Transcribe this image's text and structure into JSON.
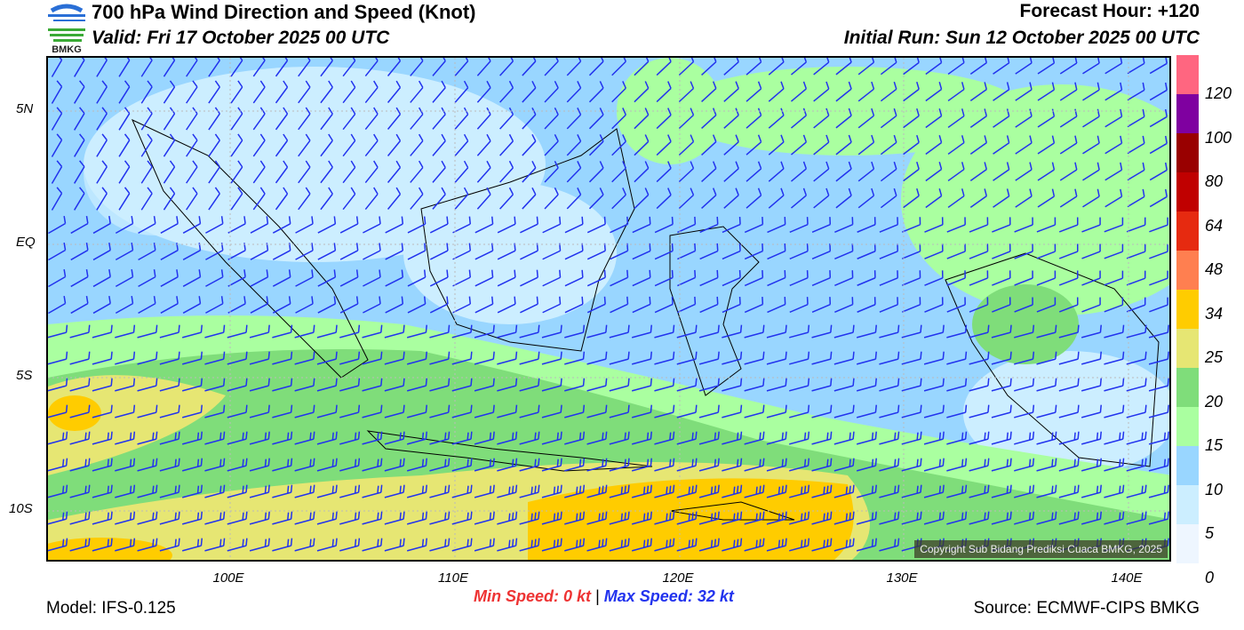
{
  "header": {
    "title": "700 hPa Wind Direction and Speed (Knot)",
    "valid": "Valid: Fri 17 October 2025 00 UTC",
    "forecast_hour": "Forecast Hour: +120",
    "initial_run": "Initial Run: Sun 12 October 2025 00 UTC"
  },
  "logo": {
    "text": "BMKG"
  },
  "map": {
    "lat_labels": [
      "5N",
      "EQ",
      "5S",
      "10S"
    ],
    "lon_labels": [
      "100E",
      "110E",
      "120E",
      "130E",
      "140E"
    ],
    "copyright": "Copyright Sub Bidang Prediksi Cuaca BMKG, 2025",
    "extent": {
      "lon": [
        91.9,
        142
      ],
      "lat": [
        -12,
        7
      ]
    }
  },
  "colorbar": {
    "levels": [
      "120",
      "100",
      "80",
      "64",
      "48",
      "34",
      "25",
      "20",
      "15",
      "10",
      "5",
      "0"
    ],
    "colors": [
      "#ff6680",
      "#7f00a0",
      "#990000",
      "#c00000",
      "#e62a10",
      "#ff7f50",
      "#ffcc00",
      "#e6e673",
      "#7fdd7a",
      "#aaffa0",
      "#99d6ff",
      "#cceeff",
      "#eef6ff"
    ]
  },
  "footer": {
    "model": "Model: IFS-0.125",
    "source": "Source: ECMWF-CIPS BMKG",
    "min_label": "Min Speed:",
    "min_value": "0 kt",
    "separator": "|",
    "max_label": "Max Speed:",
    "max_value": "32 kt"
  },
  "colors": {
    "barb": "#2233ee",
    "min": "#ee3333",
    "max": "#2233ee"
  }
}
